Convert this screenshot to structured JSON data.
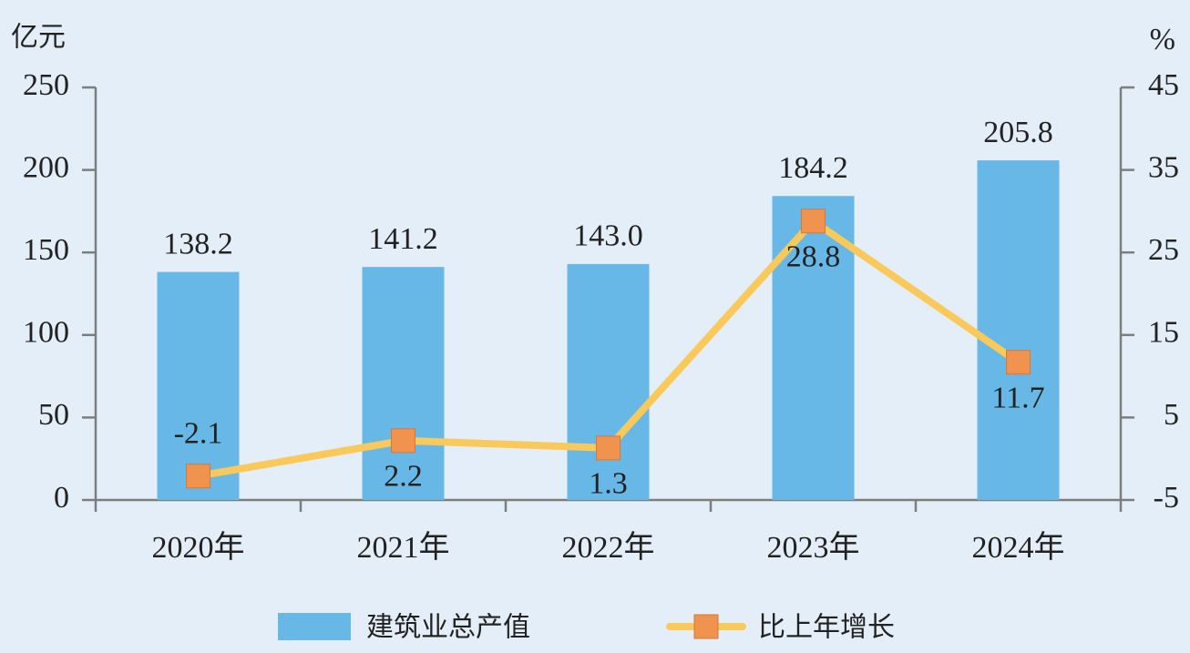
{
  "chart_data": {
    "type": "bar_line",
    "ylabel": "亿元",
    "y2label": "%",
    "categories": [
      "2020年",
      "2021年",
      "2022年",
      "2023年",
      "2024年"
    ],
    "series": [
      {
        "name": "建筑业总产值",
        "type": "bar",
        "color": "#67b8e6",
        "values": [
          138.2,
          141.2,
          143.0,
          184.2,
          205.8
        ],
        "value_labels": [
          "138.2",
          "141.2",
          "143.0",
          "184.2",
          "205.8"
        ]
      },
      {
        "name": "比上年增长",
        "type": "line",
        "axis": "y2",
        "color": "#f9c95c",
        "marker_color": "#f0934e",
        "values": [
          -2.1,
          2.2,
          1.3,
          28.8,
          11.7
        ]
      }
    ],
    "ylim": [
      0,
      250
    ],
    "yticks": [
      0,
      50,
      100,
      150,
      200,
      250
    ],
    "y2lim": [
      -5,
      45
    ],
    "y2ticks": [
      -5,
      5,
      15,
      25,
      35,
      45
    ]
  }
}
